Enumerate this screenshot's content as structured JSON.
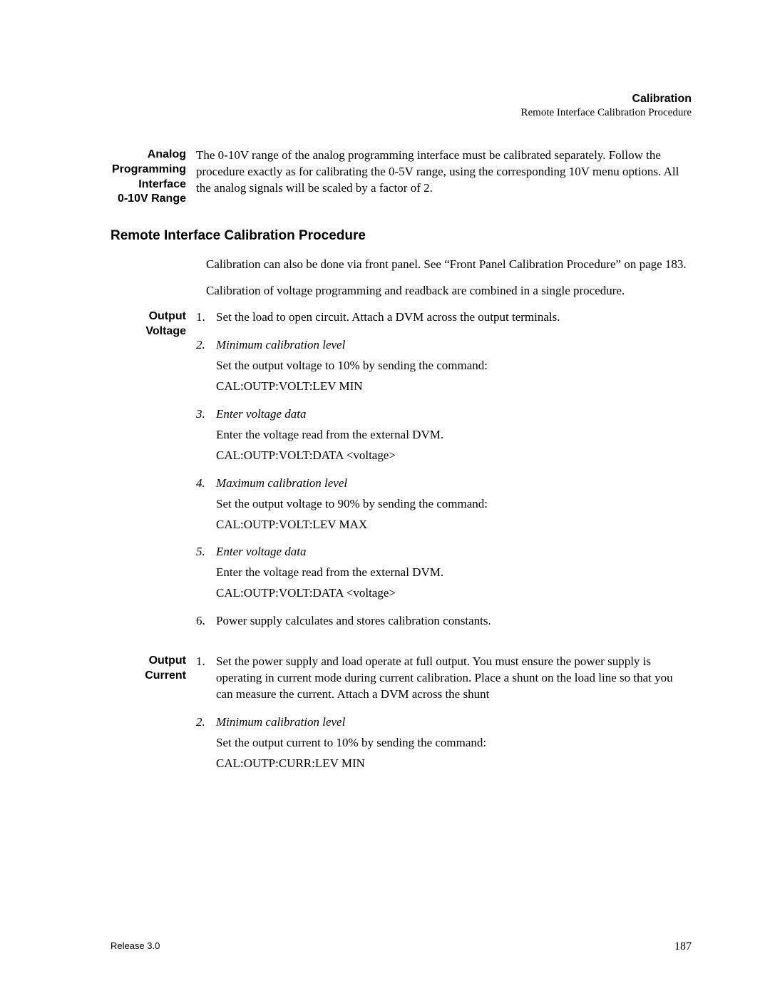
{
  "header": {
    "title": "Calibration",
    "subtitle": "Remote Interface Calibration Procedure"
  },
  "analog_section": {
    "label_lines": [
      "Analog",
      "Programming",
      "Interface",
      "0-10V Range"
    ],
    "body": "The 0-10V range of the analog programming interface must be calibrated separately. Follow the procedure exactly as for calibrating the 0-5V range, using the corresponding 10V menu options. All the analog signals will be scaled by a factor of 2."
  },
  "h2": "Remote Interface Calibration Procedure",
  "intro": {
    "p1": "Calibration can also be done via front panel. See “Front Panel Calibration Procedure” on page 183.",
    "p2": "Calibration of voltage programming and readback are combined in a single procedure."
  },
  "voltage": {
    "label_lines": [
      "Output",
      "Voltage"
    ],
    "steps": [
      {
        "num": "1.",
        "num_italic": false,
        "title": "",
        "lines": [
          "Set the load to open circuit. Attach a DVM across the output terminals."
        ]
      },
      {
        "num": "2.",
        "num_italic": true,
        "title": "Minimum calibration level",
        "lines": [
          "Set the output voltage to 10% by sending the command:",
          "CAL:OUTP:VOLT:LEV MIN"
        ]
      },
      {
        "num": "3.",
        "num_italic": true,
        "title": "Enter voltage data",
        "lines": [
          "Enter the voltage read from the external DVM.",
          "CAL:OUTP:VOLT:DATA <voltage>"
        ]
      },
      {
        "num": "4.",
        "num_italic": true,
        "title": "Maximum calibration level",
        "lines": [
          "Set the output voltage to 90% by sending the command:",
          "CAL:OUTP:VOLT:LEV MAX"
        ]
      },
      {
        "num": "5.",
        "num_italic": true,
        "title": "Enter voltage data",
        "lines": [
          "Enter the voltage read from the external DVM.",
          "CAL:OUTP:VOLT:DATA <voltage>"
        ]
      },
      {
        "num": "6.",
        "num_italic": false,
        "title": "",
        "lines": [
          "Power supply calculates and stores calibration constants."
        ]
      }
    ]
  },
  "current": {
    "label_lines": [
      "Output",
      "Current"
    ],
    "steps": [
      {
        "num": "1.",
        "num_italic": false,
        "title": "",
        "lines": [
          "Set the power supply and load operate at full output. You must ensure the power supply is operating in current mode during current calibration. Place a shunt on the load line so that you can measure the current. Attach a DVM across the shunt"
        ]
      },
      {
        "num": "2.",
        "num_italic": true,
        "title": "Minimum calibration level",
        "lines": [
          "Set the output current to 10% by sending the command:",
          "CAL:OUTP:CURR:LEV MIN"
        ]
      }
    ]
  },
  "footer": {
    "release": "Release 3.0",
    "page": "187"
  }
}
